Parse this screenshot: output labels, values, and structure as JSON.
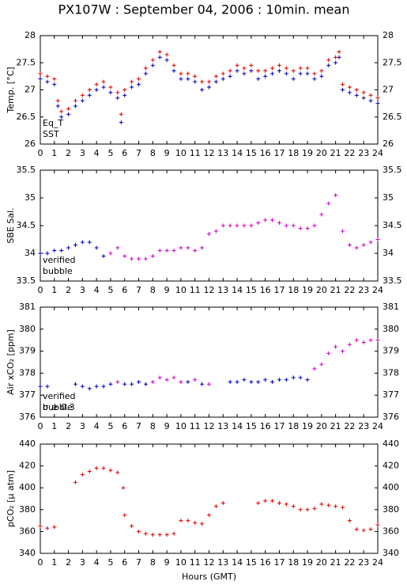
{
  "title": "PX107W : September 04, 2006 : 10min. mean",
  "chart_data": [
    {
      "type": "scatter",
      "ylabel": "Temp. [°C]",
      "xlim": [
        0,
        24
      ],
      "xticks": [
        0,
        1,
        2,
        3,
        4,
        5,
        6,
        7,
        8,
        9,
        10,
        11,
        12,
        13,
        14,
        15,
        16,
        17,
        18,
        19,
        20,
        21,
        22,
        23,
        24
      ],
      "ylim": [
        26,
        28
      ],
      "yticks": [
        26,
        26.5,
        27,
        27.5,
        28
      ],
      "x": [
        0,
        0.5,
        1,
        1.25,
        1.5,
        2,
        2.5,
        3,
        3.5,
        4,
        4.5,
        5,
        5.5,
        5.75,
        6,
        6.5,
        7,
        7.5,
        8,
        8.5,
        9,
        9.5,
        10,
        10.5,
        11,
        11.5,
        12,
        12.5,
        13,
        13.5,
        14,
        14.5,
        15,
        15.5,
        16,
        16.5,
        17,
        17.5,
        18,
        18.5,
        19,
        19.5,
        20,
        20.5,
        21,
        21.25,
        21.5,
        22,
        22.5,
        23,
        23.5,
        24
      ],
      "series": [
        {
          "name": "Eq_T",
          "color": "#e00000",
          "values": [
            27.3,
            27.25,
            27.2,
            26.8,
            26.6,
            26.65,
            26.8,
            26.9,
            27.0,
            27.1,
            27.15,
            27.05,
            26.95,
            26.55,
            27.0,
            27.15,
            27.2,
            27.4,
            27.55,
            27.7,
            27.65,
            27.45,
            27.3,
            27.3,
            27.25,
            27.15,
            27.15,
            27.25,
            27.3,
            27.35,
            27.45,
            27.4,
            27.45,
            27.35,
            27.35,
            27.4,
            27.45,
            27.4,
            27.35,
            27.4,
            27.4,
            27.3,
            27.35,
            27.55,
            27.6,
            27.7,
            27.1,
            27.05,
            27.0,
            26.95,
            26.9,
            26.85
          ]
        },
        {
          "name": "SST",
          "color": "#0000c0",
          "values": [
            27.2,
            27.15,
            27.1,
            26.7,
            26.5,
            26.55,
            26.7,
            26.8,
            26.9,
            27.0,
            27.05,
            26.95,
            26.85,
            26.4,
            26.9,
            27.05,
            27.1,
            27.3,
            27.45,
            27.6,
            27.55,
            27.35,
            27.2,
            27.2,
            27.15,
            27.0,
            27.05,
            27.15,
            27.2,
            27.25,
            27.35,
            27.3,
            27.35,
            27.2,
            27.25,
            27.3,
            27.35,
            27.3,
            27.2,
            27.3,
            27.3,
            27.2,
            27.25,
            27.45,
            27.5,
            27.6,
            27.0,
            26.95,
            26.9,
            26.85,
            26.8,
            26.75
          ]
        }
      ]
    },
    {
      "type": "scatter",
      "ylabel": "SBE Sal.",
      "xlim": [
        0,
        24
      ],
      "xticks": [
        0,
        1,
        2,
        3,
        4,
        5,
        6,
        7,
        8,
        9,
        10,
        11,
        12,
        13,
        14,
        15,
        16,
        17,
        18,
        19,
        20,
        21,
        22,
        23,
        24
      ],
      "ylim": [
        33.5,
        35.5
      ],
      "yticks": [
        33.5,
        34,
        34.5,
        35,
        35.5
      ],
      "x": [
        0,
        0.5,
        1,
        1.5,
        2,
        2.5,
        3,
        3.5,
        4,
        4.5,
        5,
        5.5,
        6,
        6.5,
        7,
        7.5,
        8,
        8.5,
        9,
        9.5,
        10,
        10.5,
        11,
        11.5,
        12,
        12.5,
        13,
        13.5,
        14,
        14.5,
        15,
        15.5,
        16,
        16.5,
        17,
        17.5,
        18,
        18.5,
        19,
        19.5,
        20,
        20.5,
        21,
        21.5,
        22,
        22.5,
        23,
        23.5,
        24
      ],
      "series": [
        {
          "name": "verified",
          "color": "#0000c0",
          "values": [
            34.0,
            34.0,
            34.05,
            34.05,
            34.1,
            34.15,
            34.2,
            34.2,
            34.1,
            33.95,
            null,
            null,
            null,
            null,
            null,
            null,
            null,
            null,
            null,
            null,
            null,
            null,
            null,
            null,
            null,
            null,
            null,
            null,
            null,
            null,
            null,
            null,
            null,
            null,
            null,
            null,
            null,
            null,
            null,
            null,
            null,
            null,
            null,
            null,
            null,
            null,
            null,
            null,
            null
          ]
        },
        {
          "name": "bubble",
          "color": "#cc00cc",
          "values": [
            null,
            null,
            null,
            null,
            null,
            null,
            null,
            null,
            null,
            null,
            34.0,
            34.1,
            33.95,
            33.9,
            33.9,
            33.9,
            33.95,
            34.05,
            34.05,
            34.05,
            34.1,
            34.1,
            34.05,
            34.1,
            34.35,
            34.4,
            34.5,
            34.5,
            34.5,
            34.5,
            34.5,
            34.55,
            34.6,
            34.6,
            34.55,
            34.5,
            34.5,
            34.45,
            34.45,
            34.5,
            34.7,
            34.9,
            35.05,
            34.4,
            34.15,
            34.1,
            34.15,
            34.2,
            34.25
          ]
        }
      ]
    },
    {
      "type": "scatter",
      "ylabel": "Air xCO₂ [ppm]",
      "annotation": "σ ≥ 0.3",
      "xlim": [
        0,
        24
      ],
      "xticks": [
        0,
        1,
        2,
        3,
        4,
        5,
        6,
        7,
        8,
        9,
        10,
        11,
        12,
        13,
        14,
        15,
        16,
        17,
        18,
        19,
        20,
        21,
        22,
        23,
        24
      ],
      "ylim": [
        376,
        381
      ],
      "yticks": [
        376,
        377,
        378,
        379,
        380,
        381
      ],
      "x": [
        0,
        0.5,
        2.5,
        3,
        3.5,
        4,
        4.5,
        5,
        5.5,
        6,
        6.5,
        7,
        7.5,
        8,
        8.5,
        9,
        9.5,
        10,
        10.5,
        11,
        11.5,
        12,
        13.5,
        14,
        14.5,
        15,
        15.5,
        16,
        16.5,
        17,
        17.5,
        18,
        18.5,
        19,
        19.5,
        20,
        20.5,
        21,
        21.5,
        22,
        22.5,
        23,
        23.5,
        24
      ],
      "series": [
        {
          "name": "verified",
          "color": "#0000c0",
          "values": [
            377.4,
            377.4,
            377.5,
            377.4,
            377.3,
            377.4,
            377.4,
            377.5,
            null,
            377.5,
            377.5,
            377.6,
            377.5,
            null,
            null,
            null,
            null,
            null,
            377.6,
            null,
            377.5,
            null,
            377.6,
            377.6,
            377.7,
            377.6,
            377.6,
            377.7,
            377.6,
            377.7,
            377.7,
            377.8,
            377.8,
            377.7,
            null,
            null,
            null,
            null,
            null,
            null,
            null,
            null,
            null,
            null
          ]
        },
        {
          "name": "bubble",
          "color": "#cc00cc",
          "values": [
            null,
            null,
            null,
            null,
            null,
            null,
            null,
            null,
            377.6,
            null,
            null,
            null,
            null,
            377.6,
            377.8,
            377.7,
            377.8,
            377.6,
            null,
            377.7,
            null,
            377.5,
            null,
            null,
            null,
            null,
            null,
            null,
            null,
            null,
            null,
            null,
            null,
            null,
            378.2,
            378.4,
            378.9,
            379.2,
            379.0,
            379.3,
            379.5,
            379.4,
            379.5,
            379.5
          ]
        }
      ]
    },
    {
      "type": "scatter",
      "ylabel": "pCO₂ [μ atm]",
      "xlabel": "Hours (GMT)",
      "xlim": [
        0,
        24
      ],
      "xticks": [
        0,
        1,
        2,
        3,
        4,
        5,
        6,
        7,
        8,
        9,
        10,
        11,
        12,
        13,
        14,
        15,
        16,
        17,
        18,
        19,
        20,
        21,
        22,
        23,
        24
      ],
      "ylim": [
        340,
        440
      ],
      "yticks": [
        340,
        360,
        380,
        400,
        420,
        440
      ],
      "x": [
        0,
        0.5,
        1,
        2.5,
        3,
        3.5,
        4,
        4.5,
        5,
        5.5,
        5.9,
        6,
        6.5,
        7,
        7.5,
        8,
        8.5,
        9,
        9.5,
        10,
        10.5,
        11,
        11.5,
        12,
        12.5,
        13,
        15.5,
        16,
        16.5,
        17,
        17.5,
        18,
        18.5,
        19,
        19.5,
        20,
        20.5,
        21,
        21.5,
        22,
        22.5,
        23,
        23.5,
        24
      ],
      "series": [
        {
          "color": "#e00000",
          "values": [
            365,
            363,
            364,
            405,
            412,
            415,
            418,
            418,
            416,
            414,
            400,
            375,
            365,
            360,
            358,
            357,
            357,
            357,
            358,
            370,
            370,
            368,
            367,
            375,
            383,
            386,
            386,
            388,
            388,
            386,
            385,
            383,
            380,
            380,
            381,
            385,
            384,
            383,
            382,
            370,
            362,
            361,
            362,
            366
          ]
        }
      ]
    }
  ]
}
